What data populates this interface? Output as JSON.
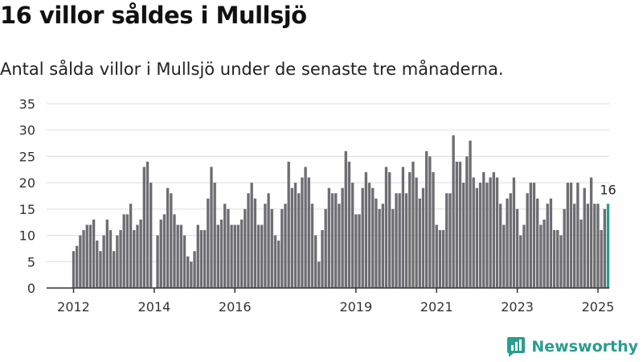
{
  "header": {
    "title": "16 villor såldes i Mullsjö",
    "subtitle": "Antal sålda villor i Mullsjö under de senaste tre månaderna."
  },
  "branding": {
    "name": "Newsworthy",
    "logo_icon": "bar-chart-logo-icon"
  },
  "colors": {
    "bar": "#6e6d72",
    "highlight": "#2a9d8f",
    "grid": "#dddddd",
    "axis": "#333333",
    "brand": "#2a9d8f"
  },
  "chart_data": {
    "type": "bar",
    "title": "16 villor såldes i Mullsjö",
    "subtitle": "Antal sålda villor i Mullsjö under de senaste tre månaderna.",
    "xlabel": "",
    "ylabel": "",
    "ylim": [
      0,
      35
    ],
    "yticks": [
      0,
      5,
      10,
      15,
      20,
      25,
      30,
      35
    ],
    "xtick_labels": [
      "2012",
      "2014",
      "2016",
      "2019",
      "2021",
      "2023",
      "2025"
    ],
    "grid": true,
    "legend": "none",
    "first_month": "2012-01",
    "last_month": "2025-01",
    "highlight_label": "16",
    "values": [
      7,
      8,
      10,
      11,
      12,
      12,
      13,
      9,
      7,
      10,
      13,
      11,
      7,
      10,
      11,
      14,
      14,
      16,
      11,
      12,
      13,
      23,
      24,
      20,
      0,
      10,
      13,
      14,
      19,
      18,
      14,
      12,
      12,
      10,
      6,
      5,
      7,
      12,
      11,
      11,
      17,
      23,
      20,
      12,
      13,
      16,
      15,
      12,
      12,
      12,
      13,
      15,
      18,
      20,
      17,
      12,
      12,
      16,
      18,
      15,
      10,
      9,
      15,
      16,
      24,
      19,
      20,
      18,
      21,
      23,
      21,
      16,
      10,
      5,
      11,
      15,
      19,
      18,
      18,
      16,
      19,
      26,
      24,
      20,
      14,
      14,
      19,
      22,
      20,
      19,
      17,
      15,
      16,
      23,
      22,
      15,
      18,
      18,
      23,
      18,
      22,
      24,
      21,
      17,
      19,
      26,
      25,
      22,
      12,
      11,
      11,
      18,
      18,
      29,
      24,
      24,
      20,
      25,
      28,
      21,
      19,
      20,
      22,
      20,
      21,
      22,
      21,
      16,
      12,
      17,
      18,
      21,
      15,
      10,
      12,
      18,
      20,
      20,
      17,
      12,
      13,
      16,
      17,
      11,
      11,
      10,
      15,
      20,
      20,
      16,
      20,
      13,
      19,
      16,
      21,
      16,
      16,
      11,
      15,
      16
    ]
  }
}
